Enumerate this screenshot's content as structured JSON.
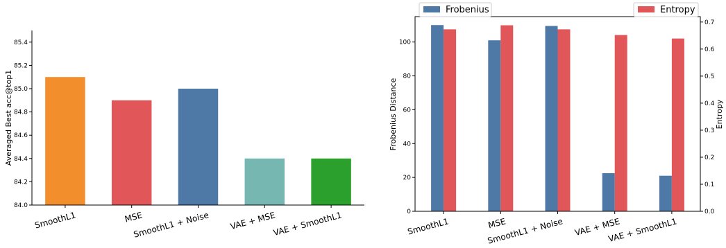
{
  "chart_data": [
    {
      "type": "bar",
      "categories": [
        "SmoothL1",
        "MSE",
        "SmoothL1 + Noise",
        "VAE + MSE",
        "VAE + SmoothL1"
      ],
      "values": [
        85.1,
        84.9,
        85.0,
        84.4,
        84.4
      ],
      "colors": [
        "#f28e2b",
        "#e15759",
        "#4e79a7",
        "#76b7b2",
        "#2ca02c"
      ],
      "ylabel": "Averaged Best acc@top1",
      "ylim": [
        84.0,
        85.5
      ],
      "yticks": [
        "84.0",
        "84.2",
        "84.4",
        "84.6",
        "84.8",
        "85.0",
        "85.2",
        "85.4"
      ],
      "grid": false
    },
    {
      "type": "bar",
      "categories": [
        "SmoothL1",
        "MSE",
        "SmoothL1 + Noise",
        "VAE + MSE",
        "VAE + SmoothL1"
      ],
      "series": [
        {
          "name": "Frobenius",
          "axis": "left",
          "color": "#4e79a7",
          "values": [
            110,
            101,
            109.5,
            22.5,
            21
          ]
        },
        {
          "name": "Entropy",
          "axis": "right",
          "color": "#e15759",
          "values": [
            0.673,
            0.688,
            0.673,
            0.652,
            0.639
          ]
        }
      ],
      "ylabel": "Frobenius Distance",
      "ylim": [
        0,
        115
      ],
      "yticks": [
        "0",
        "20",
        "40",
        "60",
        "80",
        "100"
      ],
      "y2label": "Entropy",
      "y2lim": [
        0,
        0.72
      ],
      "y2ticks": [
        "0.0",
        "0.1",
        "0.2",
        "0.3",
        "0.4",
        "0.5",
        "0.6",
        "0.7"
      ],
      "legend": {
        "left_label": "Frobenius",
        "right_label": "Entropy",
        "placement": "top"
      },
      "grid": false
    }
  ]
}
